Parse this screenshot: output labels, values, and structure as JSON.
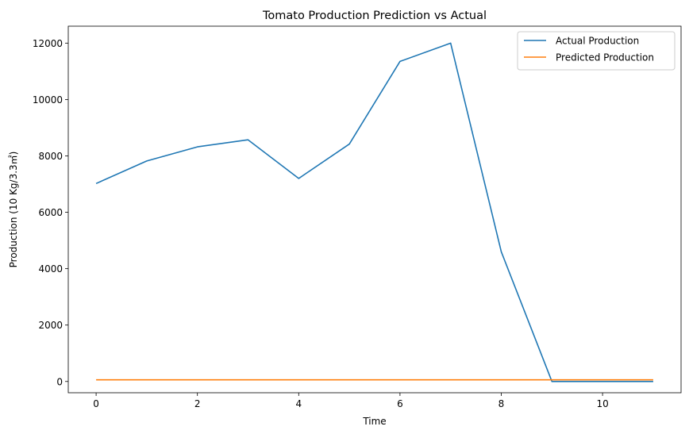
{
  "chart_data": {
    "type": "line",
    "title": "Tomato Production Prediction vs Actual",
    "xlabel": "Time",
    "ylabel": "Production (10 Kg/3.3㎡)",
    "xlim": [
      -0.55,
      11.55
    ],
    "ylim": [
      -400,
      12600
    ],
    "xticks": [
      0,
      2,
      4,
      6,
      8,
      10
    ],
    "yticks": [
      0,
      2000,
      4000,
      6000,
      8000,
      10000,
      12000
    ],
    "x": [
      0,
      1,
      2,
      3,
      4,
      5,
      6,
      7,
      8,
      9,
      10,
      11
    ],
    "series": [
      {
        "name": "Actual Production",
        "color": "#1f77b4",
        "values": [
          7020,
          7820,
          8320,
          8570,
          7200,
          8420,
          11350,
          12000,
          4600,
          0,
          0,
          0
        ]
      },
      {
        "name": "Predicted Production",
        "color": "#ff7f0e",
        "values": [
          60,
          60,
          60,
          60,
          60,
          60,
          60,
          60,
          60,
          60,
          60,
          60
        ]
      }
    ],
    "grid": false,
    "legend_position": "top-right"
  }
}
